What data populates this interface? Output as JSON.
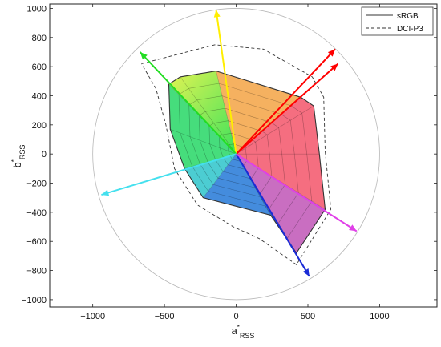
{
  "chart_data": {
    "type": "line",
    "xlabel": "a",
    "xlabel_sup": "*",
    "xlabel_sub": "RSS",
    "ylabel": "b",
    "ylabel_sup": "*",
    "ylabel_sub": "RSS",
    "xlim": [
      -1300,
      1400
    ],
    "ylim": [
      -1050,
      1030
    ],
    "xticks": [
      -1000,
      -500,
      0,
      500,
      1000
    ],
    "xtick_labels": [
      "−1000",
      "−500",
      "0",
      "500",
      "1000"
    ],
    "yticks": [
      1000,
      800,
      600,
      400,
      200,
      0,
      -200,
      -400,
      -600,
      -800,
      -1000
    ],
    "ytick_labels": [
      "1000",
      "800",
      "600",
      "400",
      "200",
      "0",
      "−200",
      "−400",
      "−600",
      "−800",
      "−1000"
    ],
    "grid": false,
    "legend": {
      "placement": "top-right",
      "entries": [
        {
          "label": "sRGB",
          "style": "solid"
        },
        {
          "label": "DCI-P3",
          "style": "dashed"
        }
      ]
    },
    "reference_circle_radius": 1000,
    "series": [
      {
        "name": "sRGB",
        "style": "solid",
        "points": [
          [
            -140,
            570
          ],
          [
            450,
            390
          ],
          [
            540,
            330
          ],
          [
            580,
            0
          ],
          [
            620,
            -380
          ],
          [
            420,
            -680
          ],
          [
            240,
            -420
          ],
          [
            -230,
            -300
          ],
          [
            -360,
            -100
          ],
          [
            -460,
            170
          ],
          [
            -470,
            480
          ],
          [
            -390,
            530
          ],
          [
            -140,
            570
          ]
        ]
      },
      {
        "name": "DCI-P3",
        "style": "dashed",
        "points": [
          [
            -660,
            620
          ],
          [
            -150,
            750
          ],
          [
            190,
            720
          ],
          [
            530,
            530
          ],
          [
            610,
            390
          ],
          [
            620,
            20
          ],
          [
            660,
            -380
          ],
          [
            420,
            -760
          ],
          [
            160,
            -580
          ],
          [
            -20,
            -500
          ],
          [
            -270,
            -350
          ],
          [
            -430,
            -100
          ],
          [
            -490,
            200
          ],
          [
            -560,
            450
          ],
          [
            -660,
            620
          ]
        ]
      }
    ],
    "arrows": [
      {
        "name": "red",
        "color": "#ff0000",
        "to": [
          710,
          620
        ]
      },
      {
        "name": "red-p3",
        "color": "#ff0000",
        "to": [
          690,
          720
        ]
      },
      {
        "name": "yellow",
        "color": "#ffee00",
        "to": [
          -140,
          990
        ]
      },
      {
        "name": "green",
        "color": "#22dd22",
        "to": [
          -670,
          700
        ]
      },
      {
        "name": "cyan",
        "color": "#44e0ee",
        "to": [
          -940,
          -280
        ]
      },
      {
        "name": "blue",
        "color": "#1a2bd6",
        "to": [
          510,
          -840
        ]
      },
      {
        "name": "magenta",
        "color": "#e040e8",
        "to": [
          840,
          -530
        ]
      }
    ],
    "colors": {
      "red": "#ff0000",
      "yellow": "#ffee00",
      "green": "#22dd22",
      "cyan": "#44e0ee",
      "blue": "#1a2bd6",
      "magenta": "#e040e8"
    }
  }
}
